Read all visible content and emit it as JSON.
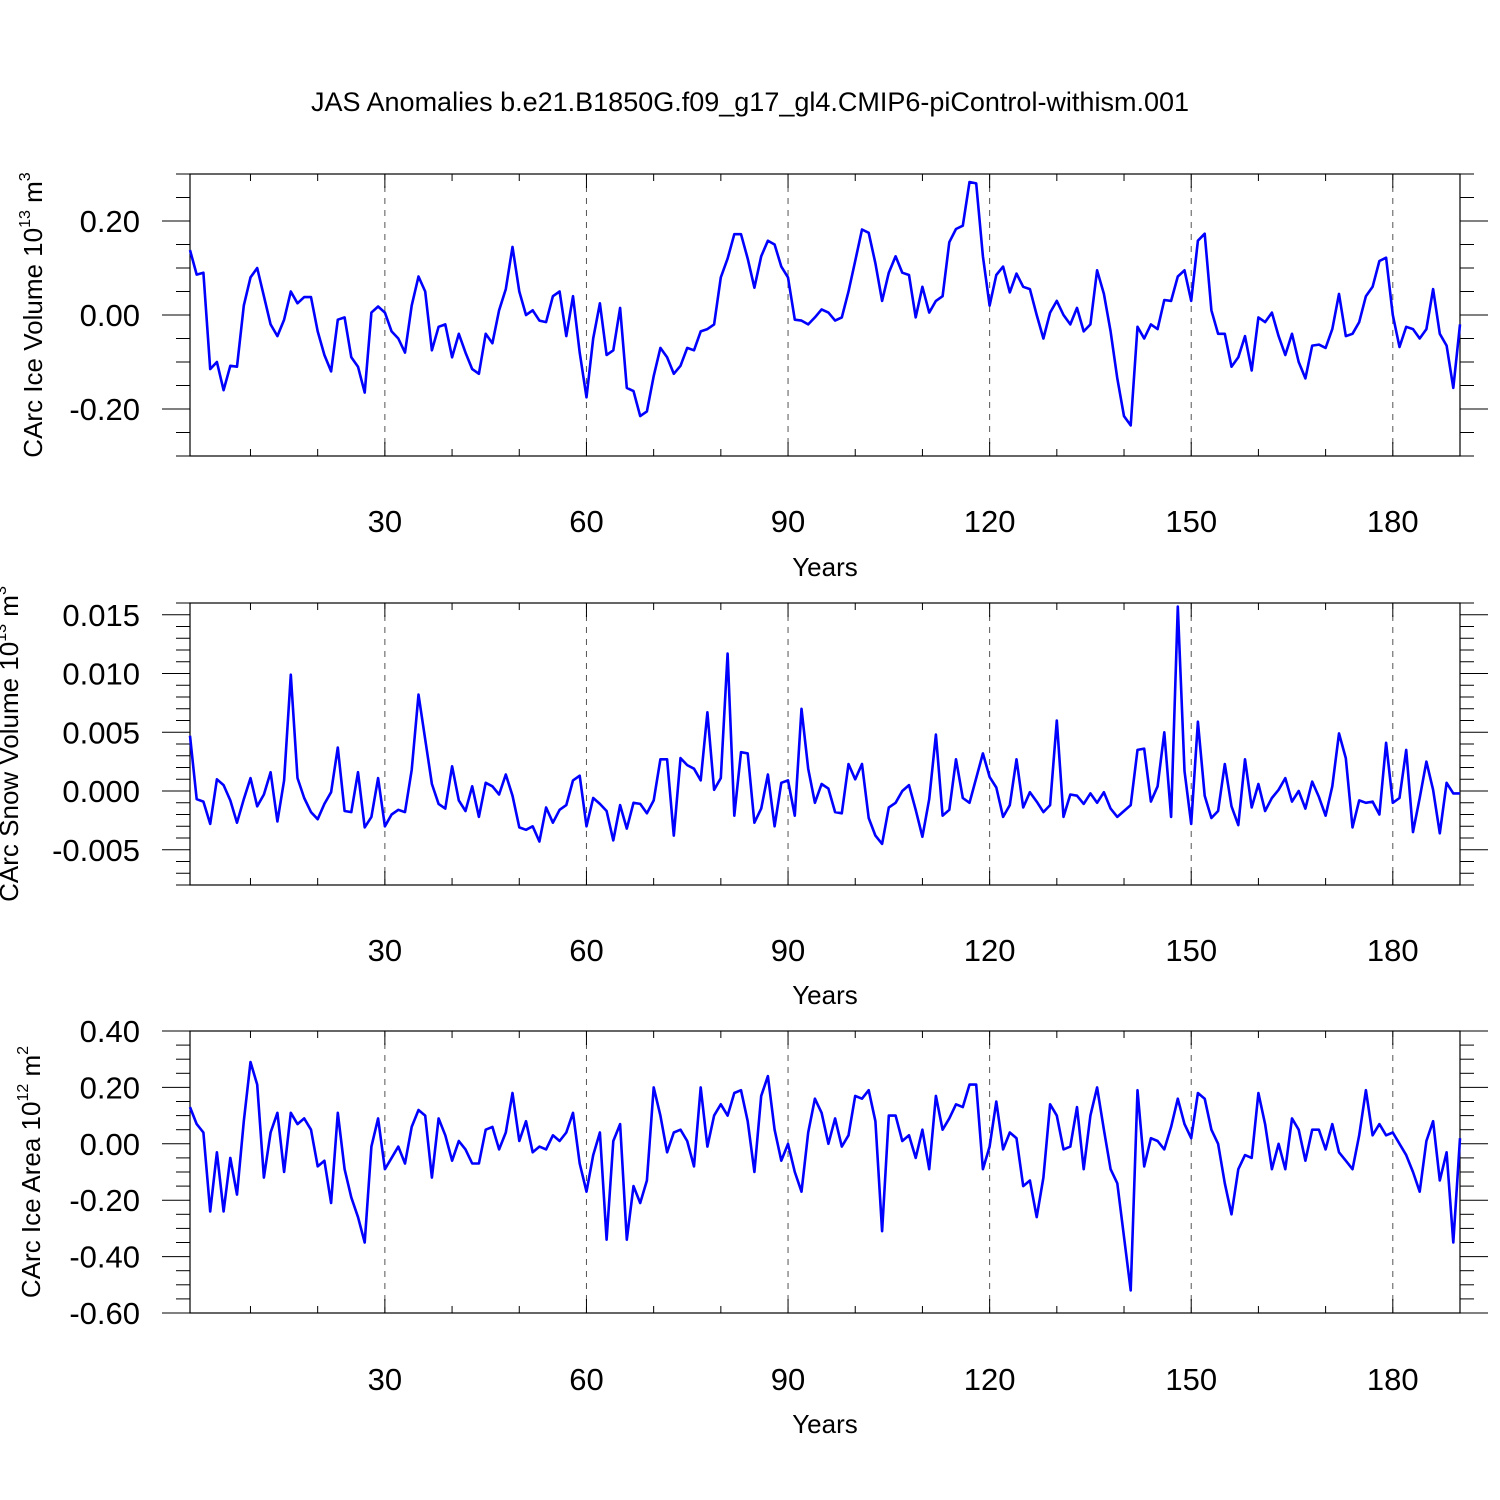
{
  "title": "JAS Anomalies b.e21.B1850G.f09_g17_gl4.CMIP6-piControl-withism.001",
  "chart_data": [
    {
      "type": "line",
      "xlabel": "Years",
      "ylabel": "CArc Ice Volume 10",
      "ylabel_exp": "13",
      "ylabel_unit": " m",
      "ylabel_unit_exp": "3",
      "xlim": [
        1,
        190
      ],
      "ylim": [
        -0.3,
        0.3
      ],
      "xticks": [
        30,
        60,
        90,
        120,
        150,
        180
      ],
      "xtick_labels": [
        "30",
        "60",
        "90",
        "120",
        "150",
        "180"
      ],
      "yticks": [
        -0.2,
        0.0,
        0.2
      ],
      "ytick_labels": [
        "-0.20",
        "0.00",
        "0.20"
      ],
      "y_minor_step": 0.05,
      "x_minor_step": 10,
      "grid": "vertical dashed at major x ticks",
      "series": [
        {
          "color": "#0000ff",
          "values": [
            0.138,
            0.086,
            0.09,
            -0.115,
            -0.1,
            -0.16,
            -0.108,
            -0.11,
            0.02,
            0.08,
            0.1,
            0.04,
            -0.02,
            -0.045,
            -0.01,
            0.05,
            0.025,
            0.038,
            0.038,
            -0.035,
            -0.085,
            -0.12,
            -0.01,
            -0.005,
            -0.09,
            -0.11,
            -0.165,
            0.005,
            0.018,
            0.005,
            -0.035,
            -0.05,
            -0.08,
            0.02,
            0.082,
            0.05,
            -0.075,
            -0.025,
            -0.02,
            -0.09,
            -0.04,
            -0.08,
            -0.115,
            -0.125,
            -0.04,
            -0.06,
            0.01,
            0.055,
            0.145,
            0.05,
            0.0,
            0.01,
            -0.012,
            -0.015,
            0.04,
            0.05,
            -0.045,
            0.04,
            -0.08,
            -0.175,
            -0.05,
            0.025,
            -0.085,
            -0.075,
            0.015,
            -0.155,
            -0.162,
            -0.215,
            -0.205,
            -0.13,
            -0.07,
            -0.09,
            -0.125,
            -0.108,
            -0.07,
            -0.075,
            -0.035,
            -0.03,
            -0.02,
            0.08,
            0.12,
            0.172,
            0.172,
            0.12,
            0.058,
            0.125,
            0.158,
            0.15,
            0.103,
            0.08,
            -0.01,
            -0.012,
            -0.02,
            -0.005,
            0.012,
            0.005,
            -0.012,
            -0.005,
            0.05,
            0.115,
            0.182,
            0.175,
            0.11,
            0.03,
            0.09,
            0.125,
            0.09,
            0.085,
            -0.005,
            0.06,
            0.005,
            0.03,
            0.04,
            0.155,
            0.183,
            0.19,
            0.283,
            0.28,
            0.125,
            0.02,
            0.085,
            0.103,
            0.048,
            0.088,
            0.06,
            0.055,
            0.0,
            -0.05,
            0.005,
            0.03,
            0.0,
            -0.02,
            0.015,
            -0.035,
            -0.02,
            0.095,
            0.045,
            -0.035,
            -0.135,
            -0.215,
            -0.235,
            -0.025,
            -0.05,
            -0.02,
            -0.03,
            0.032,
            0.03,
            0.082,
            0.095,
            0.03,
            0.158,
            0.173,
            0.01,
            -0.04,
            -0.04,
            -0.11,
            -0.09,
            -0.045,
            -0.118,
            -0.005,
            -0.015,
            0.005,
            -0.045,
            -0.085,
            -0.04,
            -0.1,
            -0.135,
            -0.065,
            -0.063,
            -0.07,
            -0.03,
            0.045,
            -0.045,
            -0.04,
            -0.015,
            0.04,
            0.06,
            0.115,
            0.122,
            0.0,
            -0.068,
            -0.025,
            -0.03,
            -0.05,
            -0.03,
            0.055,
            -0.04,
            -0.065,
            -0.155,
            -0.02
          ]
        }
      ]
    },
    {
      "type": "line",
      "xlabel": "Years",
      "ylabel": "CArc Snow Volume 10",
      "ylabel_exp": "13",
      "ylabel_unit": " m",
      "ylabel_unit_exp": "3",
      "xlim": [
        1,
        190
      ],
      "ylim": [
        -0.008,
        0.016
      ],
      "xticks": [
        30,
        60,
        90,
        120,
        150,
        180
      ],
      "xtick_labels": [
        "30",
        "60",
        "90",
        "120",
        "150",
        "180"
      ],
      "yticks": [
        -0.005,
        0.0,
        0.005,
        0.01,
        0.015
      ],
      "ytick_labels": [
        "-0.005",
        "0.000",
        "0.005",
        "0.010",
        "0.015"
      ],
      "y_minor_step": 0.001,
      "x_minor_step": 10,
      "grid": "vertical dashed at major x ticks",
      "series": [
        {
          "color": "#0000ff",
          "values": [
            0.0047,
            -0.0007,
            -0.0009,
            -0.0028,
            0.001,
            0.0005,
            -0.0008,
            -0.0027,
            -0.0007,
            0.0011,
            -0.0013,
            -0.0003,
            0.0016,
            -0.0026,
            0.0009,
            0.0099,
            0.0011,
            -0.0006,
            -0.0018,
            -0.0024,
            -0.0011,
            -0.0001,
            0.0037,
            -0.0017,
            -0.0018,
            0.0016,
            -0.0031,
            -0.0022,
            0.0011,
            -0.003,
            -0.002,
            -0.0016,
            -0.0018,
            0.0018,
            0.0082,
            0.0044,
            0.0006,
            -0.0011,
            -0.0015,
            0.0021,
            -0.0008,
            -0.0017,
            0.0004,
            -0.0022,
            0.0007,
            0.0004,
            -0.0003,
            0.0014,
            -0.0004,
            -0.0031,
            -0.0033,
            -0.003,
            -0.0043,
            -0.0014,
            -0.0027,
            -0.0016,
            -0.0012,
            0.0009,
            0.0013,
            -0.003,
            -0.0006,
            -0.0011,
            -0.0017,
            -0.0042,
            -0.0012,
            -0.0032,
            -0.001,
            -0.0011,
            -0.0019,
            -0.0008,
            0.0027,
            0.0027,
            -0.0038,
            0.0028,
            0.0022,
            0.0019,
            0.0009,
            0.0067,
            0.0001,
            0.0011,
            0.0117,
            -0.0021,
            0.0033,
            0.0032,
            -0.0027,
            -0.0015,
            0.0014,
            -0.003,
            0.0007,
            0.0009,
            -0.0021,
            0.007,
            0.0019,
            -0.001,
            0.0006,
            0.0002,
            -0.0018,
            -0.0019,
            0.0023,
            0.001,
            0.0023,
            -0.0023,
            -0.0038,
            -0.0045,
            -0.0014,
            -0.001,
            0.0,
            0.0005,
            -0.0016,
            -0.0039,
            -0.0007,
            0.0048,
            -0.0021,
            -0.0016,
            0.0027,
            -0.0006,
            -0.001,
            0.0011,
            0.0032,
            0.0012,
            0.0003,
            -0.0022,
            -0.0012,
            0.0027,
            -0.0014,
            -0.0001,
            -0.0009,
            -0.0018,
            -0.0012,
            0.006,
            -0.0022,
            -0.0003,
            -0.0004,
            -0.0011,
            -0.0002,
            -0.001,
            -0.0001,
            -0.0015,
            -0.0022,
            -0.0017,
            -0.0012,
            0.0035,
            0.0036,
            -0.0009,
            0.0004,
            0.005,
            -0.0022,
            0.0157,
            0.0017,
            -0.0028,
            0.0059,
            -0.0004,
            -0.0023,
            -0.0017,
            0.0023,
            -0.0013,
            -0.0029,
            0.0027,
            -0.0014,
            0.0006,
            -0.0017,
            -0.0006,
            0.0001,
            0.0011,
            -0.0009,
            0.0,
            -0.0015,
            0.0008,
            -0.0005,
            -0.0021,
            0.0004,
            0.0049,
            0.0028,
            -0.0031,
            -0.0008,
            -0.001,
            -0.0009,
            -0.002,
            0.0041,
            -0.001,
            -0.0006,
            0.0035,
            -0.0035,
            -0.0006,
            0.0025,
            0.0001,
            -0.0036,
            0.0007,
            -0.0002,
            -0.0002
          ]
        }
      ]
    },
    {
      "type": "line",
      "xlabel": "Years",
      "ylabel": "CArc Ice Area 10",
      "ylabel_exp": "12",
      "ylabel_unit": " m",
      "ylabel_unit_exp": "2",
      "xlim": [
        1,
        190
      ],
      "ylim": [
        -0.6,
        0.4
      ],
      "xticks": [
        30,
        60,
        90,
        120,
        150,
        180
      ],
      "xtick_labels": [
        "30",
        "60",
        "90",
        "120",
        "150",
        "180"
      ],
      "yticks": [
        -0.6,
        -0.4,
        -0.2,
        0.0,
        0.2,
        0.4
      ],
      "ytick_labels": [
        "-0.60",
        "-0.40",
        "-0.20",
        "0.00",
        "0.20",
        "0.40"
      ],
      "y_minor_step": 0.05,
      "x_minor_step": 10,
      "grid": "vertical dashed at major x ticks",
      "series": [
        {
          "color": "#0000ff",
          "values": [
            0.13,
            0.07,
            0.04,
            -0.24,
            -0.03,
            -0.24,
            -0.05,
            -0.18,
            0.08,
            0.29,
            0.21,
            -0.12,
            0.04,
            0.11,
            -0.1,
            0.11,
            0.07,
            0.09,
            0.05,
            -0.08,
            -0.06,
            -0.21,
            0.11,
            -0.09,
            -0.19,
            -0.26,
            -0.35,
            -0.01,
            0.09,
            -0.09,
            -0.05,
            -0.01,
            -0.07,
            0.06,
            0.12,
            0.1,
            -0.12,
            0.09,
            0.03,
            -0.06,
            0.01,
            -0.02,
            -0.07,
            -0.07,
            0.05,
            0.06,
            -0.02,
            0.04,
            0.18,
            0.01,
            0.08,
            -0.03,
            -0.01,
            -0.02,
            0.03,
            0.01,
            0.04,
            0.11,
            -0.07,
            -0.17,
            -0.04,
            0.04,
            -0.34,
            0.01,
            0.07,
            -0.34,
            -0.15,
            -0.21,
            -0.13,
            0.2,
            0.1,
            -0.03,
            0.04,
            0.05,
            0.01,
            -0.08,
            0.2,
            -0.01,
            0.1,
            0.14,
            0.1,
            0.18,
            0.19,
            0.08,
            -0.1,
            0.17,
            0.24,
            0.05,
            -0.06,
            0.0,
            -0.1,
            -0.17,
            0.04,
            0.16,
            0.11,
            0.0,
            0.09,
            -0.01,
            0.03,
            0.17,
            0.16,
            0.19,
            0.08,
            -0.31,
            0.1,
            0.1,
            0.01,
            0.03,
            -0.05,
            0.05,
            -0.09,
            0.17,
            0.05,
            0.09,
            0.14,
            0.13,
            0.21,
            0.21,
            -0.09,
            -0.01,
            0.15,
            -0.02,
            0.04,
            0.02,
            -0.15,
            -0.13,
            -0.26,
            -0.12,
            0.14,
            0.1,
            -0.02,
            -0.01,
            0.13,
            -0.09,
            0.1,
            0.2,
            0.05,
            -0.09,
            -0.14,
            -0.33,
            -0.52,
            0.19,
            -0.08,
            0.02,
            0.01,
            -0.02,
            0.06,
            0.16,
            0.07,
            0.02,
            0.18,
            0.16,
            0.05,
            0.0,
            -0.14,
            -0.25,
            -0.09,
            -0.04,
            -0.05,
            0.18,
            0.07,
            -0.09,
            0.0,
            -0.09,
            0.09,
            0.05,
            -0.06,
            0.05,
            0.05,
            -0.02,
            0.07,
            -0.03,
            -0.06,
            -0.09,
            0.03,
            0.19,
            0.03,
            0.07,
            0.03,
            0.04,
            0.0,
            -0.04,
            -0.1,
            -0.17,
            0.01,
            0.08,
            -0.13,
            -0.03,
            -0.35,
            0.02
          ]
        }
      ]
    }
  ]
}
